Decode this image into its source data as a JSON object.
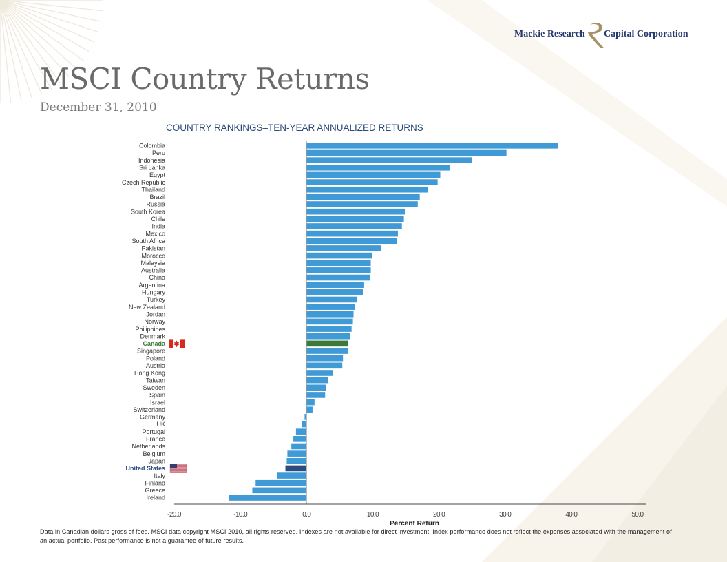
{
  "logo": {
    "left_text": "Mackie Research",
    "right_text": "Capital Corporation"
  },
  "title": "MSCI Country Returns",
  "subtitle": "December 31, 2010",
  "footnote": "Data in Canadian dollars gross of fees. MSCI data copyright MSCI 2010, all rights reserved. Indexes are not available for direct investment. Index performance does not reflect the expenses associated with the management of an actual portfolio. Past performance is not a guarantee of future results.",
  "colors": {
    "bar": "#3f9ad6",
    "canada": "#3a7a36",
    "united_states": "#2b4d7e",
    "label": "#333333"
  },
  "chart_data": {
    "type": "bar",
    "orientation": "horizontal",
    "title": "COUNTRY RANKINGS–TEN-YEAR ANNUALIZED RETURNS",
    "xlabel": "Percent Return",
    "ylabel": "",
    "xlim": [
      -20,
      50
    ],
    "xticks": [
      -20,
      -10,
      0,
      10,
      20,
      30,
      40,
      50
    ],
    "xtick_labels": [
      "-20.0",
      "-10.0",
      "0.0",
      "10.0",
      "20.0",
      "30.0",
      "40.0",
      "50.0"
    ],
    "grid": false,
    "highlights": {
      "Canada": "canada-flag-icon",
      "United States": "us-flag-icon"
    },
    "categories": [
      "Colombia",
      "Peru",
      "Indonesia",
      "Sri Lanka",
      "Egypt",
      "Czech Republic",
      "Thailand",
      "Brazil",
      "Russia",
      "South Korea",
      "Chile",
      "India",
      "Mexico",
      "South Africa",
      "Pakistan",
      "Morocco",
      "Malaysia",
      "Australia",
      "China",
      "Argentina",
      "Hungary",
      "Turkey",
      "New Zealand",
      "Jordan",
      "Norway",
      "Philippines",
      "Denmark",
      "Canada",
      "Singapore",
      "Poland",
      "Austria",
      "Hong Kong",
      "Taiwan",
      "Sweden",
      "Spain",
      "Israel",
      "Switzerland",
      "Germany",
      "UK",
      "Portugal",
      "France",
      "Netherlands",
      "Belgium",
      "Japan",
      "United States",
      "Italy",
      "Finland",
      "Greece",
      "Ireland"
    ],
    "values": [
      38.0,
      30.2,
      25.0,
      21.6,
      20.2,
      19.8,
      18.3,
      17.1,
      16.8,
      14.9,
      14.7,
      14.4,
      13.8,
      13.6,
      11.3,
      9.9,
      9.7,
      9.7,
      9.6,
      8.7,
      8.5,
      7.6,
      7.3,
      7.1,
      7.0,
      6.8,
      6.6,
      6.3,
      6.3,
      5.5,
      5.4,
      4.0,
      3.3,
      2.9,
      2.8,
      1.2,
      0.9,
      -0.3,
      -0.7,
      -1.6,
      -2.0,
      -2.3,
      -2.9,
      -3.0,
      -3.2,
      -4.4,
      -7.7,
      -8.2,
      -11.7
    ]
  }
}
